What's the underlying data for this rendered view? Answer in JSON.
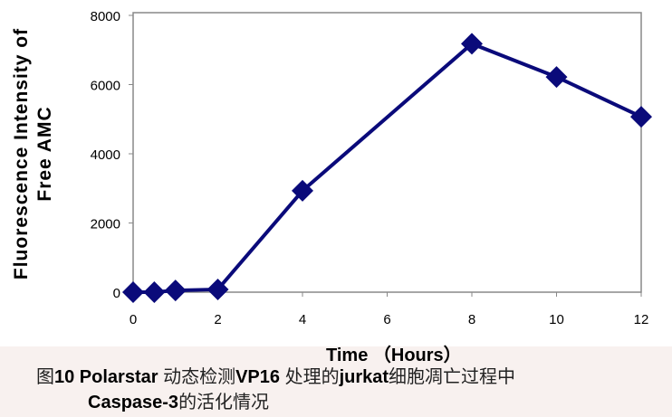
{
  "chart_data": {
    "type": "line",
    "xlabel": "Time （Hours）",
    "ylabel_line1": "Fluorescence   Intensity of",
    "ylabel_line2": "Free AMC",
    "xlim": [
      0,
      12
    ],
    "ylim": [
      0,
      8000
    ],
    "xticks": [
      0,
      2,
      4,
      6,
      8,
      10,
      12
    ],
    "yticks": [
      0,
      2000,
      4000,
      6000,
      8000
    ],
    "grid": false,
    "marker": "diamond",
    "color": "#0a0a7a",
    "series": [
      {
        "x": [
          0,
          0.5,
          1,
          2,
          4,
          8,
          10,
          12
        ],
        "y": [
          0,
          0,
          50,
          80,
          2930,
          7180,
          6220,
          5070
        ]
      }
    ]
  },
  "caption": {
    "line1_prefix": "图",
    "line1_num": "10 Polarstar",
    "line1_a": " 动态检测",
    "line1_b": "VP16",
    "line1_c": " 处理的",
    "line1_d": "jurkat",
    "line1_e": "细胞凋亡过程中",
    "line2_a": "Caspase-3",
    "line2_b": "的活化情况"
  }
}
